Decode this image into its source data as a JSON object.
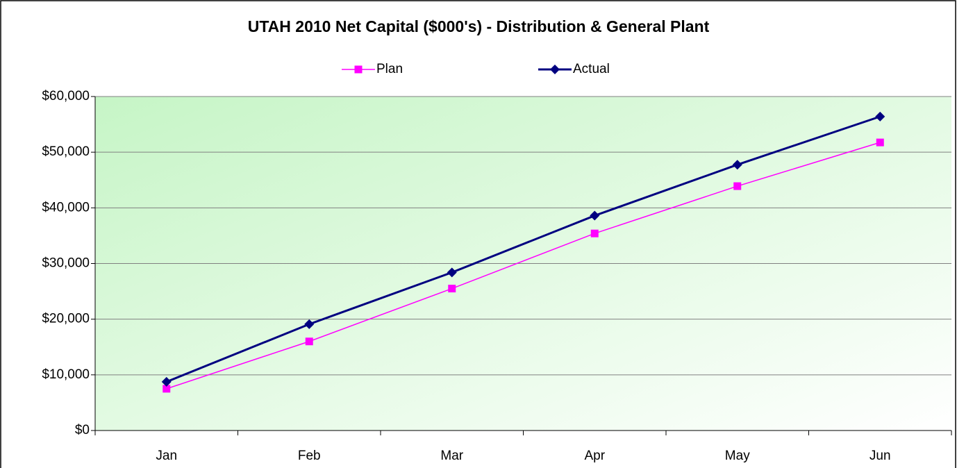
{
  "chart_data": {
    "type": "line",
    "title": "UTAH 2010 Net Capital ($000's) - Distribution & General Plant",
    "categories": [
      "Jan",
      "Feb",
      "Mar",
      "Apr",
      "May",
      "Jun"
    ],
    "series": [
      {
        "name": "Plan",
        "color": "#ff00ff",
        "marker": "square",
        "values": [
          7500,
          16000,
          25500,
          35400,
          43900,
          51750
        ]
      },
      {
        "name": "Actual",
        "color": "#000080",
        "marker": "diamond",
        "values": [
          8750,
          19100,
          28400,
          38600,
          47750,
          56400
        ]
      }
    ],
    "ylim": [
      0,
      60000
    ],
    "yticks": [
      {
        "value": 0,
        "label": "$0"
      },
      {
        "value": 10000,
        "label": "$10,000"
      },
      {
        "value": 20000,
        "label": "$20,000"
      },
      {
        "value": 30000,
        "label": "$30,000"
      },
      {
        "value": 40000,
        "label": "$40,000"
      },
      {
        "value": 50000,
        "label": "$50,000"
      },
      {
        "value": 60000,
        "label": "$60,000"
      }
    ],
    "grid": true,
    "legend": "top"
  }
}
